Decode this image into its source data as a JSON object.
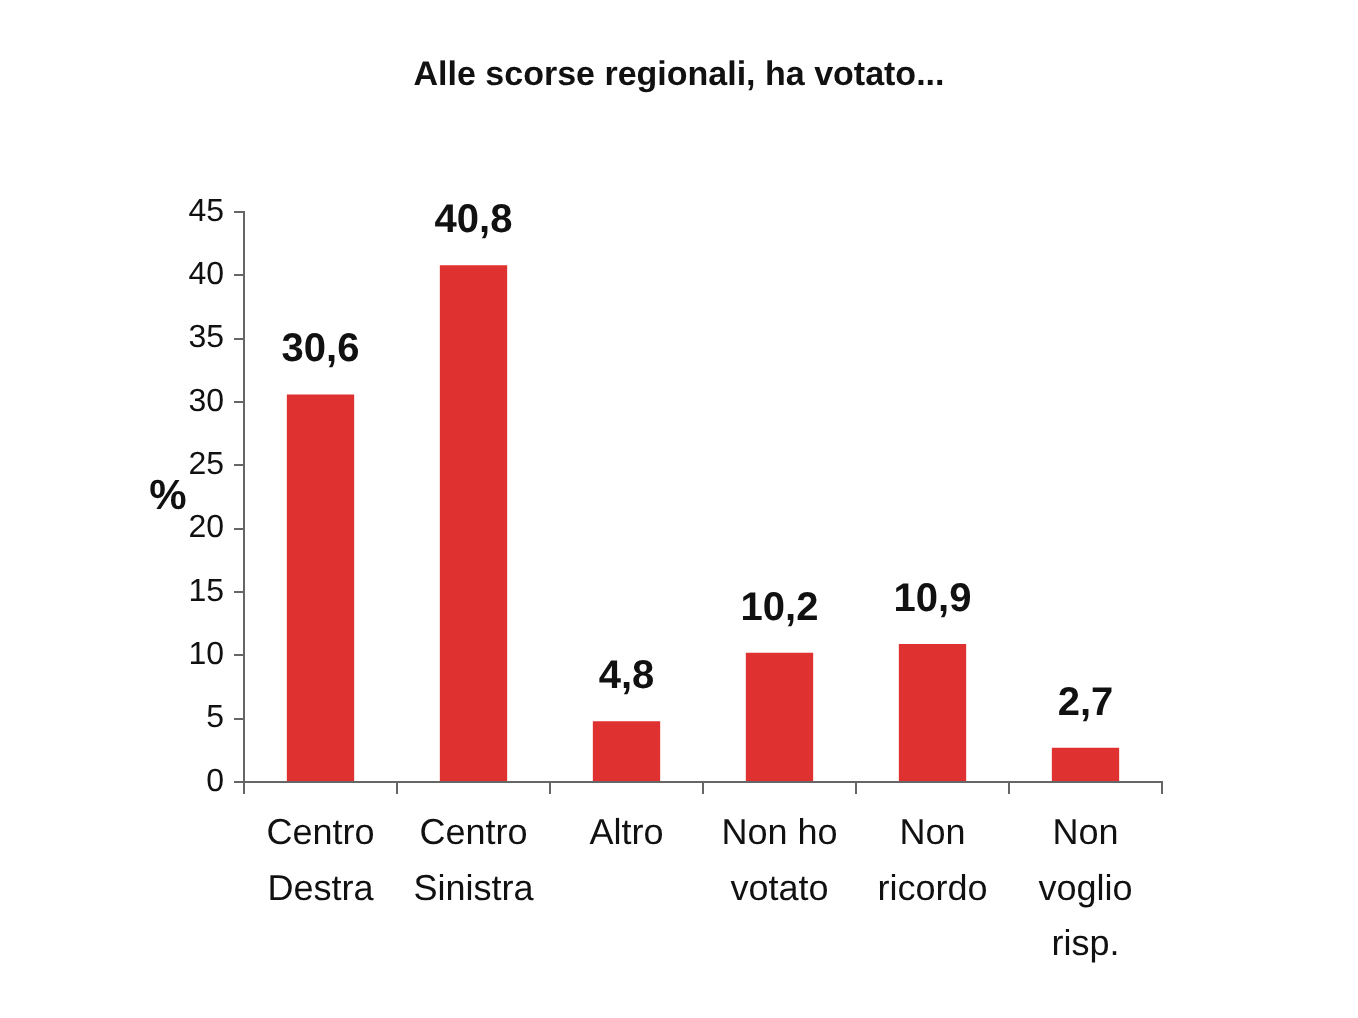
{
  "chart_data": {
    "type": "bar",
    "title": "Alle scorse regionali, ha votato...",
    "ylabel": "%",
    "categories": [
      "Centro Destra",
      "Centro Sinistra",
      "Altro",
      "Non ho votato",
      "Non ricordo",
      "Non voglio risp."
    ],
    "values": [
      30.6,
      40.8,
      4.8,
      10.2,
      10.9,
      2.7
    ],
    "value_labels": [
      "30,6",
      "40,8",
      "4,8",
      "10,2",
      "10,9",
      "2,7"
    ],
    "color": "#e03131",
    "ylim": [
      0,
      45
    ],
    "yticks": [
      0,
      5,
      10,
      15,
      20,
      25,
      30,
      35,
      40,
      45
    ]
  }
}
